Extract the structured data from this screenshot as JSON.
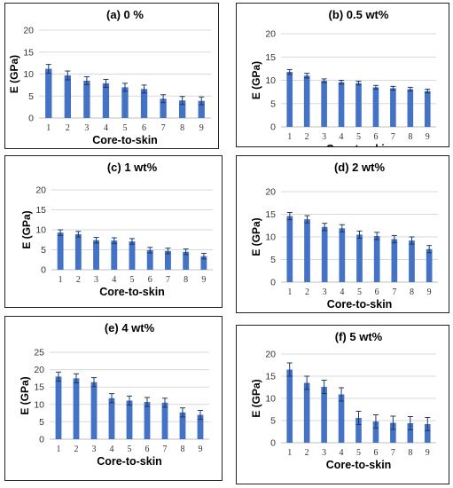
{
  "chart_data": [
    {
      "type": "bar",
      "title": "(a) 0 %",
      "xlabel": "Core-to-skin",
      "ylabel": "E (GPa)",
      "ylim": [
        0,
        20
      ],
      "yticks": [
        0,
        5,
        10,
        15,
        20
      ],
      "grid": true,
      "categories": [
        "1",
        "2",
        "3",
        "4",
        "5",
        "6",
        "7",
        "8",
        "9"
      ],
      "values": [
        11.2,
        9.7,
        8.5,
        7.9,
        7.0,
        6.6,
        4.4,
        4.0,
        3.9
      ],
      "errors": [
        1.0,
        1.0,
        0.9,
        0.9,
        0.9,
        0.9,
        0.9,
        0.9,
        0.9
      ]
    },
    {
      "type": "bar",
      "title": "(b) 0.5 wt%",
      "xlabel": "Core-to-skin",
      "ylabel": "E (GPa)",
      "ylim": [
        0,
        20
      ],
      "yticks": [
        0,
        5,
        10,
        15,
        20
      ],
      "grid": true,
      "categories": [
        "1",
        "2",
        "3",
        "4",
        "5",
        "6",
        "7",
        "8",
        "9"
      ],
      "values": [
        11.8,
        11.0,
        9.9,
        9.6,
        9.4,
        8.5,
        8.3,
        8.1,
        7.7
      ],
      "errors": [
        0.5,
        0.5,
        0.4,
        0.4,
        0.4,
        0.4,
        0.4,
        0.4,
        0.4
      ]
    },
    {
      "type": "bar",
      "title": "(c) 1 wt%",
      "xlabel": "Core-to-skin",
      "ylabel": "E (GPa)",
      "ylim": [
        0,
        20
      ],
      "yticks": [
        0,
        5,
        10,
        15,
        20
      ],
      "grid": true,
      "categories": [
        "1",
        "2",
        "3",
        "4",
        "5",
        "6",
        "7",
        "8",
        "9"
      ],
      "values": [
        9.3,
        8.9,
        7.4,
        7.3,
        7.1,
        4.9,
        4.7,
        4.5,
        3.4
      ],
      "errors": [
        0.7,
        0.7,
        0.7,
        0.7,
        0.7,
        0.7,
        0.7,
        0.7,
        0.7
      ]
    },
    {
      "type": "bar",
      "title": "(d) 2 wt%",
      "xlabel": "Core-to-skin",
      "ylabel": "E (GPa)",
      "ylim": [
        0,
        20
      ],
      "yticks": [
        0,
        5,
        10,
        15,
        20
      ],
      "grid": true,
      "categories": [
        "1",
        "2",
        "3",
        "4",
        "5",
        "6",
        "7",
        "8",
        "9"
      ],
      "values": [
        14.6,
        13.9,
        12.2,
        11.9,
        10.5,
        10.2,
        9.5,
        9.2,
        7.3
      ],
      "errors": [
        0.8,
        0.8,
        0.8,
        0.8,
        0.8,
        0.8,
        0.8,
        0.8,
        0.8
      ]
    },
    {
      "type": "bar",
      "title": "(e) 4 wt%",
      "xlabel": "Core-to-skin",
      "ylabel": "E (GPa)",
      "ylim": [
        0,
        25
      ],
      "yticks": [
        0,
        5,
        10,
        15,
        20,
        25
      ],
      "grid": true,
      "categories": [
        "1",
        "2",
        "3",
        "4",
        "5",
        "6",
        "7",
        "8",
        "9"
      ],
      "values": [
        18.0,
        17.5,
        16.4,
        11.8,
        11.1,
        10.7,
        10.5,
        7.7,
        7.0
      ],
      "errors": [
        1.3,
        1.3,
        1.3,
        1.3,
        1.3,
        1.3,
        1.3,
        1.3,
        1.3
      ]
    },
    {
      "type": "bar",
      "title": "(f) 5 wt%",
      "xlabel": "Core-to-skin",
      "ylabel": "E (GPa)",
      "ylim": [
        0,
        20
      ],
      "yticks": [
        0,
        5,
        10,
        15,
        20
      ],
      "grid": true,
      "categories": [
        "1",
        "2",
        "3",
        "4",
        "5",
        "6",
        "7",
        "8",
        "9"
      ],
      "values": [
        16.5,
        13.5,
        12.6,
        10.9,
        5.6,
        4.8,
        4.5,
        4.4,
        4.2
      ],
      "errors": [
        1.5,
        1.5,
        1.5,
        1.5,
        1.5,
        1.5,
        1.5,
        1.5,
        1.5
      ]
    }
  ]
}
